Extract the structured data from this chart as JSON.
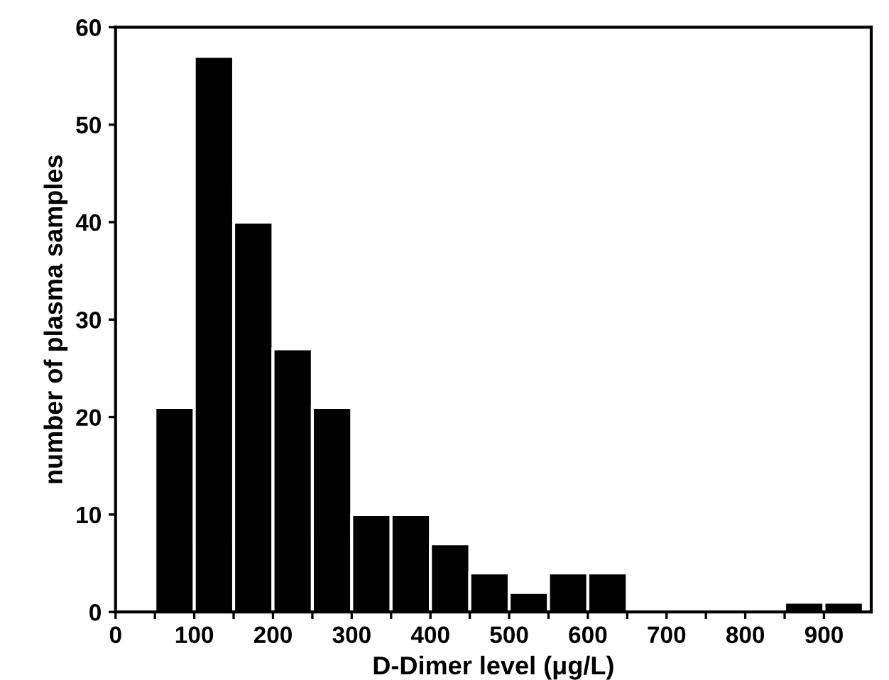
{
  "chart_data": {
    "type": "histogram",
    "xlabel": "D-Dimer level (μg/L)",
    "ylabel": "number of plasma samples",
    "bins": [
      0,
      50,
      100,
      150,
      200,
      250,
      300,
      350,
      400,
      450,
      500,
      550,
      600,
      650,
      700,
      750,
      800,
      850,
      900,
      950
    ],
    "values": [
      0,
      21,
      57,
      40,
      27,
      21,
      10,
      10,
      7,
      4,
      2,
      4,
      4,
      0,
      0,
      0,
      0,
      1,
      1
    ],
    "color": "#000000",
    "xlim": [
      0,
      960
    ],
    "ylim": [
      0,
      60
    ],
    "xticks": [
      0,
      {
        "value": 50,
        "label": null
      },
      100,
      {
        "value": 150,
        "label": null
      },
      200,
      {
        "value": 250,
        "label": null
      },
      300,
      {
        "value": 350,
        "label": null
      },
      400,
      {
        "value": 450,
        "label": null
      },
      500,
      {
        "value": 550,
        "label": null
      },
      600,
      {
        "value": 650,
        "label": null
      },
      700,
      {
        "value": 750,
        "label": null
      },
      800,
      {
        "value": 850,
        "label": null
      },
      900
    ],
    "yticks": [
      0,
      10,
      20,
      30,
      40,
      50,
      60
    ],
    "grid": false,
    "legend": false
  }
}
